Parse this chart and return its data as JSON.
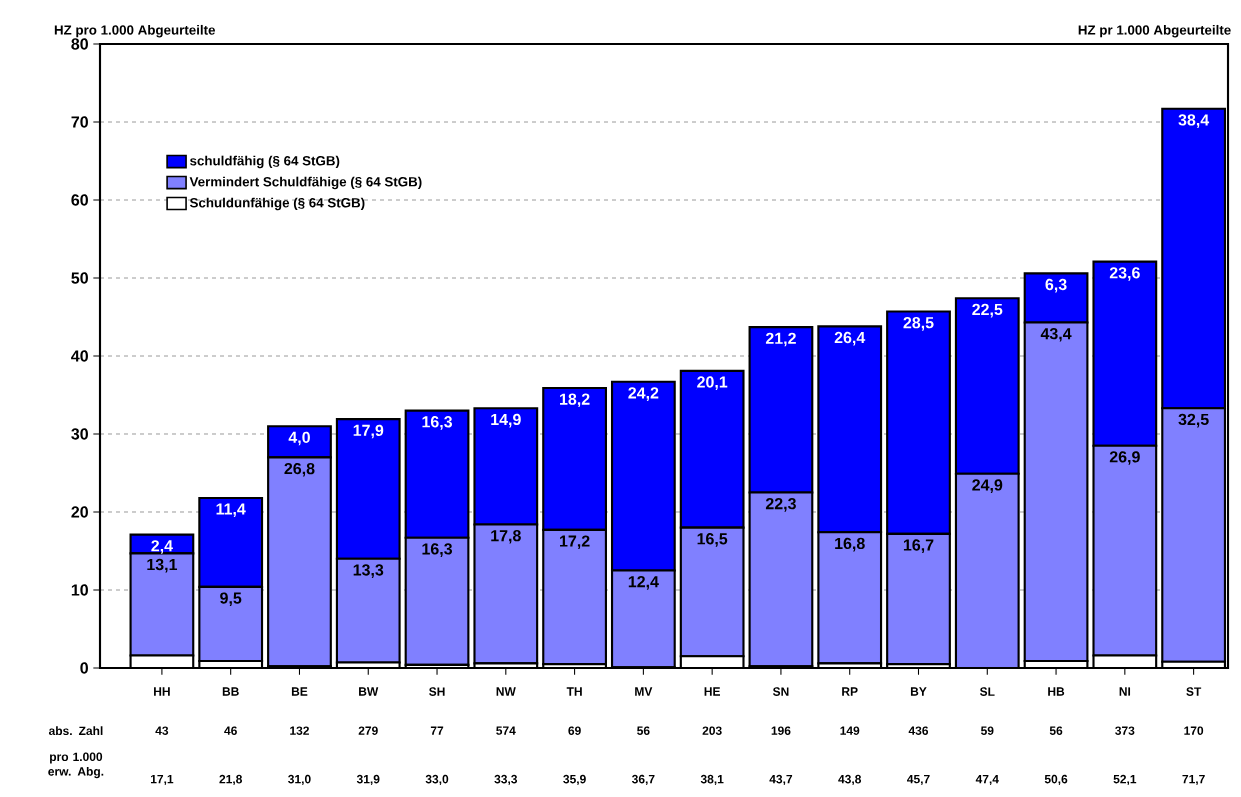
{
  "chart_data": {
    "type": "bar",
    "stacked": true,
    "ylabel": "HZ pro 1.000 Abgeurteilte",
    "y2label": "HZ pr 1.000 Abgeurteilte",
    "categories": [
      "HH",
      "BB",
      "BE",
      "BW",
      "SH",
      "NW",
      "TH",
      "MV",
      "HE",
      "SN",
      "RP",
      "BY",
      "SL",
      "HB",
      "NI",
      "ST"
    ],
    "series": [
      {
        "name": "Schuldunfähige (§ 64 StGB)",
        "color": "#ffffff",
        "values": [
          1.6,
          0.9,
          0.2,
          0.7,
          0.4,
          0.6,
          0.5,
          0.1,
          1.5,
          0.2,
          0.6,
          0.5,
          0.0,
          0.9,
          1.6,
          0.8
        ]
      },
      {
        "name": "Vermindert Schuldfähige (§ 64 StGB)",
        "color": "#8080ff",
        "values": [
          13.1,
          9.5,
          26.8,
          13.3,
          16.3,
          17.8,
          17.2,
          12.4,
          16.5,
          22.3,
          16.8,
          16.7,
          24.9,
          43.4,
          26.9,
          32.5
        ],
        "value_labels": [
          "13,1",
          "9,5",
          "26,8",
          "13,3",
          "16,3",
          "17,8",
          "17,2",
          "12,4",
          "16,5",
          "22,3",
          "16,8",
          "16,7",
          "24,9",
          "43,4",
          "26,9",
          "32,5"
        ]
      },
      {
        "name": "schuldfähig (§ 64 StGB)",
        "color": "#0000ff",
        "values": [
          2.4,
          11.4,
          4.0,
          17.9,
          16.3,
          14.9,
          18.2,
          24.2,
          20.1,
          21.2,
          26.4,
          28.5,
          22.5,
          6.3,
          23.6,
          38.4
        ],
        "value_labels": [
          "2,4",
          "11,4",
          "4,0",
          "17,9",
          "16,3",
          "14,9",
          "18,2",
          "24,2",
          "20,1",
          "21,2",
          "26,4",
          "28,5",
          "22,5",
          "6,3",
          "23,6",
          "38,4"
        ]
      }
    ],
    "annotations": [
      "abs. Zahl",
      "43",
      "46",
      "132",
      "279",
      "77",
      "574",
      "69",
      "56",
      "203",
      "196",
      "149",
      "436",
      "59",
      "56",
      "373",
      "170",
      "pro 1.000 erw. Abg.",
      "17,1",
      "21,8",
      "31,0",
      "31,9",
      "33,0",
      "33,3",
      "35,9",
      "36,7",
      "38,1",
      "43,7",
      "43,8",
      "45,7",
      "47,4",
      "50,6",
      "52,1",
      "71,7"
    ],
    "ylim": [
      0,
      80
    ],
    "yticks": [
      0,
      10,
      20,
      30,
      40,
      50,
      60,
      70,
      80
    ],
    "grid": "y",
    "legend": "top left"
  }
}
